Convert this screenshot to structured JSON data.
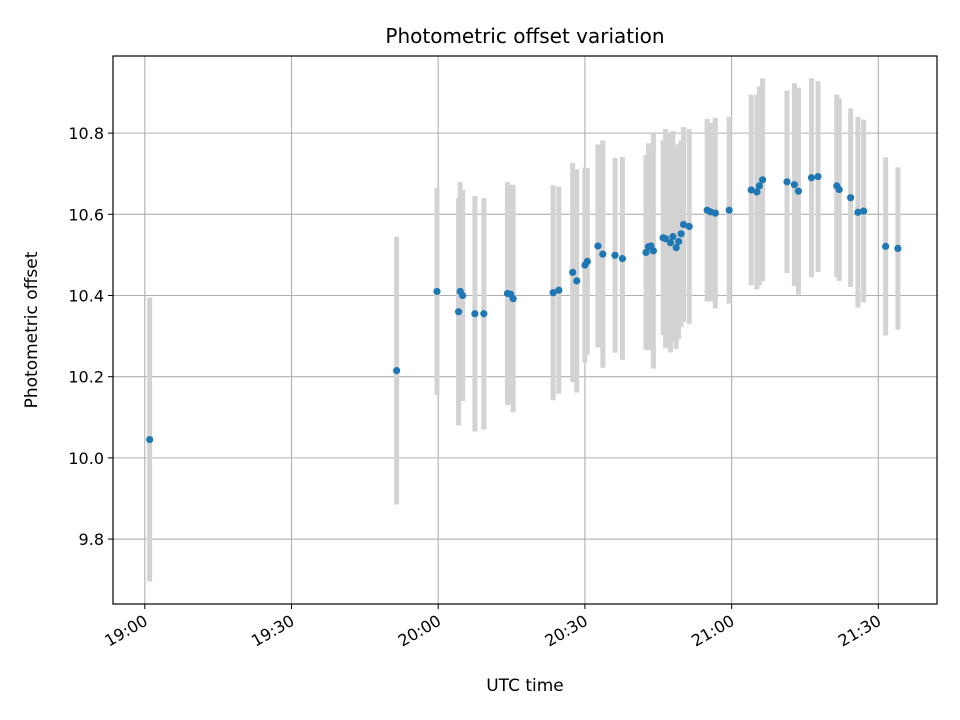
{
  "chart_data": {
    "type": "scatter",
    "title": "Photometric offset variation",
    "xlabel": "UTC time",
    "ylabel": "Photometric offset",
    "x_unit": "HH:MM UTC",
    "xlim": [
      "18:53:30",
      "21:42:00"
    ],
    "ylim": [
      9.64,
      10.99
    ],
    "xticks": [
      "19:00",
      "19:30",
      "20:00",
      "20:30",
      "21:00",
      "21:30"
    ],
    "yticks": [
      9.8,
      10.0,
      10.2,
      10.4,
      10.6,
      10.8
    ],
    "grid": true,
    "point_color": "#1f77b4",
    "errorbar_color": "#d3d3d3",
    "x": [
      "19:01:00",
      "19:51:30",
      "19:59:45",
      "20:04:10",
      "20:04:30",
      "20:05:00",
      "20:07:30",
      "20:09:20",
      "20:14:10",
      "20:14:50",
      "20:15:20",
      "20:23:30",
      "20:24:40",
      "20:27:30",
      "20:28:20",
      "20:30:00",
      "20:30:30",
      "20:32:40",
      "20:33:40",
      "20:36:10",
      "20:37:40",
      "20:42:30",
      "20:43:00",
      "20:43:30",
      "20:44:00",
      "20:46:00",
      "20:46:30",
      "20:47:30",
      "20:48:00",
      "20:48:40",
      "20:49:10",
      "20:49:40",
      "20:50:10",
      "20:51:20",
      "20:55:00",
      "20:55:40",
      "20:56:40",
      "20:59:30",
      "21:04:00",
      "21:05:10",
      "21:05:40",
      "21:06:20",
      "21:11:20",
      "21:12:50",
      "21:13:40",
      "21:16:20",
      "21:17:40",
      "21:21:30",
      "21:22:00",
      "21:24:20",
      "21:25:50",
      "21:27:00",
      "21:31:30",
      "21:34:00"
    ],
    "y": [
      10.045,
      10.215,
      10.41,
      10.36,
      10.41,
      10.4,
      10.355,
      10.355,
      10.405,
      10.403,
      10.392,
      10.407,
      10.413,
      10.457,
      10.436,
      10.475,
      10.484,
      10.522,
      10.502,
      10.499,
      10.491,
      10.506,
      10.52,
      10.522,
      10.51,
      10.542,
      10.54,
      10.53,
      10.545,
      10.518,
      10.533,
      10.552,
      10.575,
      10.57,
      10.61,
      10.606,
      10.603,
      10.61,
      10.66,
      10.655,
      10.67,
      10.685,
      10.68,
      10.673,
      10.657,
      10.69,
      10.693,
      10.67,
      10.661,
      10.641,
      10.605,
      10.608,
      10.521,
      10.516
    ],
    "yerr": [
      0.35,
      0.33,
      0.255,
      0.28,
      0.27,
      0.26,
      0.29,
      0.285,
      0.275,
      0.27,
      0.28,
      0.265,
      0.255,
      0.27,
      0.275,
      0.24,
      0.23,
      0.25,
      0.28,
      0.24,
      0.25,
      0.24,
      0.255,
      0.25,
      0.29,
      0.24,
      0.27,
      0.27,
      0.26,
      0.25,
      0.24,
      0.23,
      0.24,
      0.24,
      0.225,
      0.22,
      0.235,
      0.23,
      0.235,
      0.24,
      0.245,
      0.25,
      0.225,
      0.25,
      0.255,
      0.245,
      0.235,
      0.225,
      0.225,
      0.22,
      0.235,
      0.225,
      0.22,
      0.2
    ]
  }
}
